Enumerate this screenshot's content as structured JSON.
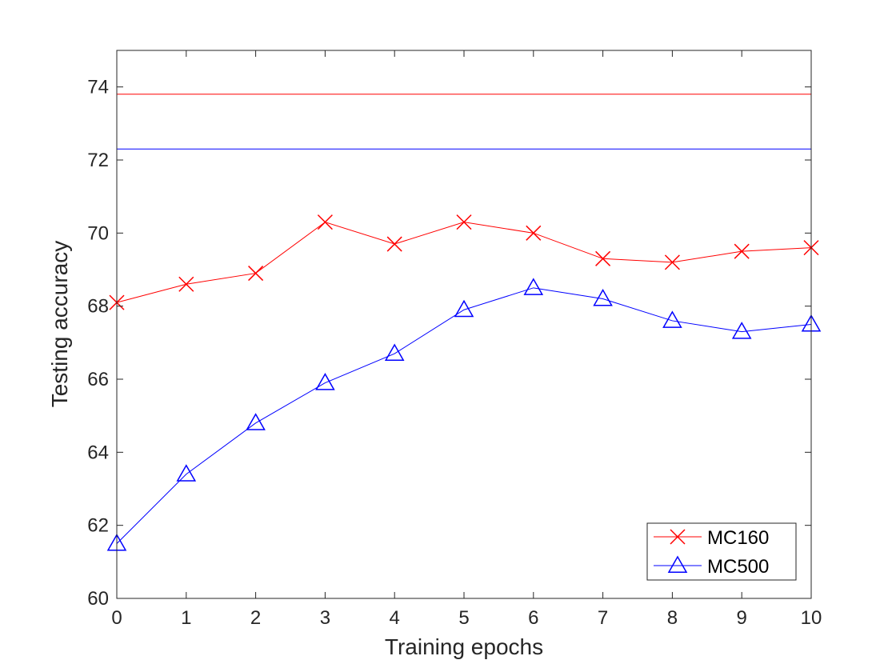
{
  "chart_data": {
    "type": "line",
    "title": "",
    "xlabel": "Training epochs",
    "ylabel": "Testing accuracy",
    "xlim": [
      0,
      10
    ],
    "ylim": [
      60,
      75
    ],
    "x_ticks": [
      0,
      1,
      2,
      3,
      4,
      5,
      6,
      7,
      8,
      9,
      10
    ],
    "y_ticks": [
      60,
      62,
      64,
      66,
      68,
      70,
      72,
      74
    ],
    "grid": false,
    "legend_position": "bottom-right",
    "x": [
      0,
      1,
      2,
      3,
      4,
      5,
      6,
      7,
      8,
      9,
      10
    ],
    "series": [
      {
        "name": "MC160",
        "color": "#ff0000",
        "marker": "x",
        "values": [
          68.1,
          68.6,
          68.9,
          70.3,
          69.7,
          70.3,
          70.0,
          69.3,
          69.2,
          69.5,
          69.6
        ]
      },
      {
        "name": "MC500",
        "color": "#0000ff",
        "marker": "triangle",
        "values": [
          61.5,
          63.4,
          64.8,
          65.9,
          66.7,
          67.9,
          68.5,
          68.2,
          67.6,
          67.3,
          67.5
        ]
      }
    ],
    "reference_lines": [
      {
        "color": "#ff0000",
        "y": 73.8
      },
      {
        "color": "#0000ff",
        "y": 72.3
      }
    ]
  }
}
